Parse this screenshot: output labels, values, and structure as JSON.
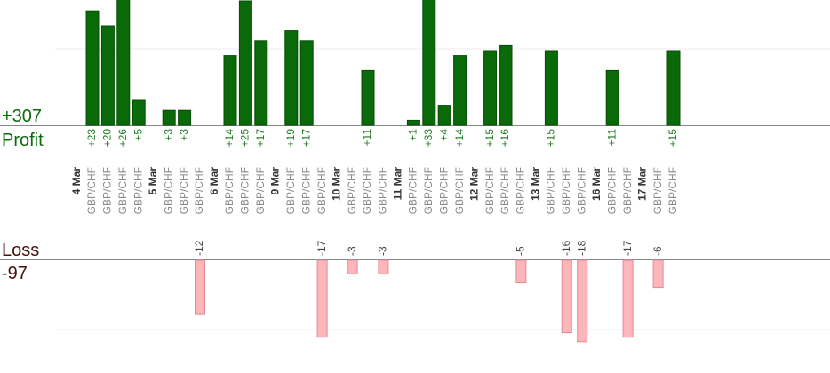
{
  "chart_data": {
    "type": "bar",
    "profit_label": "Profit",
    "loss_label": "Loss",
    "profit_total": "+307",
    "loss_total": "-97",
    "trades": [
      {
        "symbol": "GBP/CHF",
        "value": 23
      },
      {
        "symbol": "GBP/CHF",
        "value": 20
      },
      {
        "symbol": "GBP/CHF",
        "value": 26
      },
      {
        "symbol": "GBP/CHF",
        "value": 5
      },
      {
        "symbol": "GBP/CHF",
        "value": 3
      },
      {
        "symbol": "GBP/CHF",
        "value": 3
      },
      {
        "symbol": "GBP/CHF",
        "value": -12
      },
      {
        "symbol": "GBP/CHF",
        "value": 14
      },
      {
        "symbol": "GBP/CHF",
        "value": 25
      },
      {
        "symbol": "GBP/CHF",
        "value": 17
      },
      {
        "symbol": "GBP/CHF",
        "value": 19
      },
      {
        "symbol": "GBP/CHF",
        "value": 17
      },
      {
        "symbol": "GBP/CHF",
        "value": -17
      },
      {
        "symbol": "GBP/CHF",
        "value": -3
      },
      {
        "symbol": "GBP/CHF",
        "value": 11
      },
      {
        "symbol": "GBP/CHF",
        "value": -3
      },
      {
        "symbol": "GBP/CHF",
        "value": 1
      },
      {
        "symbol": "GBP/CHF",
        "value": 33
      },
      {
        "symbol": "GBP/CHF",
        "value": 4
      },
      {
        "symbol": "GBP/CHF",
        "value": 14
      },
      {
        "symbol": "GBP/CHF",
        "value": 15
      },
      {
        "symbol": "GBP/CHF",
        "value": 16
      },
      {
        "symbol": "GBP/CHF",
        "value": -5
      },
      {
        "symbol": "GBP/CHF",
        "value": 15
      },
      {
        "symbol": "GBP/CHF",
        "value": -16
      },
      {
        "symbol": "GBP/CHF",
        "value": -18
      },
      {
        "symbol": "GBP/CHF",
        "value": 11
      },
      {
        "symbol": "GBP/CHF",
        "value": -17
      },
      {
        "symbol": "GBP/CHF",
        "value": -6
      },
      {
        "symbol": "GBP/CHF",
        "value": 15
      }
    ],
    "dates": [
      {
        "label": "4 Mar",
        "before": 0
      },
      {
        "label": "5 Mar",
        "before": 4
      },
      {
        "label": "6 Mar",
        "before": 7
      },
      {
        "label": "9 Mar",
        "before": 10
      },
      {
        "label": "10 Mar",
        "before": 13
      },
      {
        "label": "11 Mar",
        "before": 16
      },
      {
        "label": "12 Mar",
        "before": 20
      },
      {
        "label": "13 Mar",
        "before": 23
      },
      {
        "label": "16 Mar",
        "before": 26
      },
      {
        "label": "17 Mar",
        "before": 28
      }
    ]
  },
  "colors": {
    "profit_bar": "#0a6a0a",
    "profit_bar_edge": "#054d05",
    "loss_bar": "#ffb6bb",
    "loss_bar_edge": "#e08a92",
    "profit_text": "#0b6b0b",
    "loss_text": "#4a1010"
  }
}
